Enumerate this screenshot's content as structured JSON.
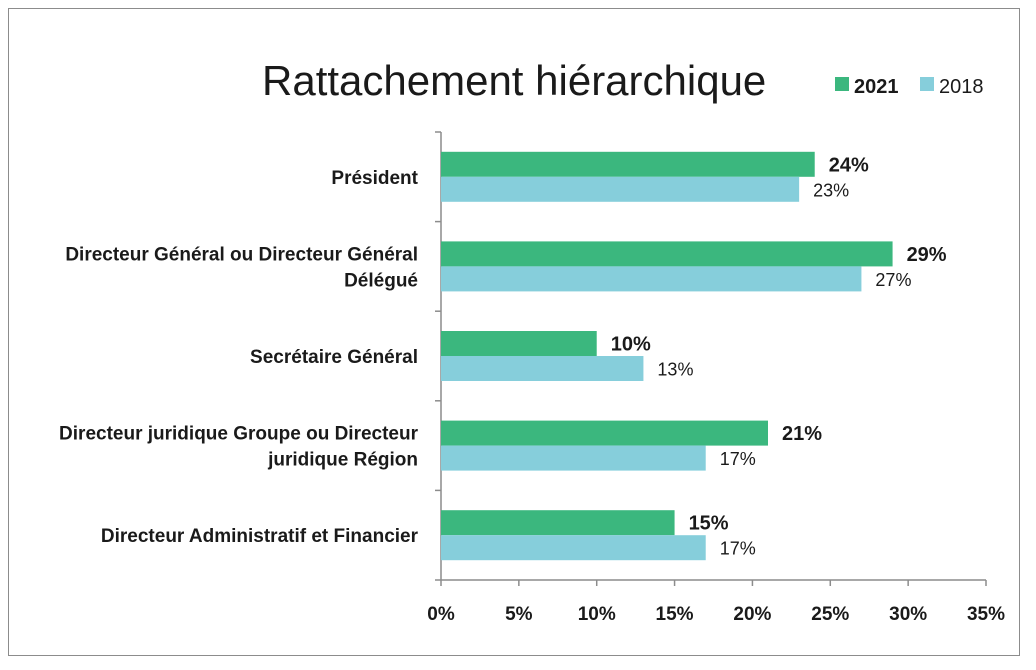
{
  "chart_data": {
    "type": "bar",
    "orientation": "horizontal",
    "title": "Rattachement hiérarchique",
    "categories": [
      [
        "Président"
      ],
      [
        "Directeur Général ou Directeur Général",
        "Délégué"
      ],
      [
        "Secrétaire Général"
      ],
      [
        "Directeur juridique Groupe ou Directeur",
        "juridique Région"
      ],
      [
        "Directeur Administratif et Financier"
      ]
    ],
    "series": [
      {
        "name": "2021",
        "values": [
          24,
          29,
          10,
          21,
          15
        ],
        "labels": [
          "24%",
          "29%",
          "10%",
          "21%",
          "15%"
        ],
        "color": "#3bb77e",
        "bold": true
      },
      {
        "name": "2018",
        "values": [
          23,
          27,
          13,
          17,
          17
        ],
        "labels": [
          "23%",
          "27%",
          "13%",
          "17%",
          "17%"
        ],
        "color": "#86cedb",
        "bold": false
      }
    ],
    "xlim": [
      0,
      35
    ],
    "xticks": [
      0,
      5,
      10,
      15,
      20,
      25,
      30,
      35
    ],
    "xtick_labels": [
      "0%",
      "5%",
      "10%",
      "15%",
      "20%",
      "25%",
      "30%",
      "35%"
    ],
    "grid": false,
    "legend_position": "top-right"
  }
}
